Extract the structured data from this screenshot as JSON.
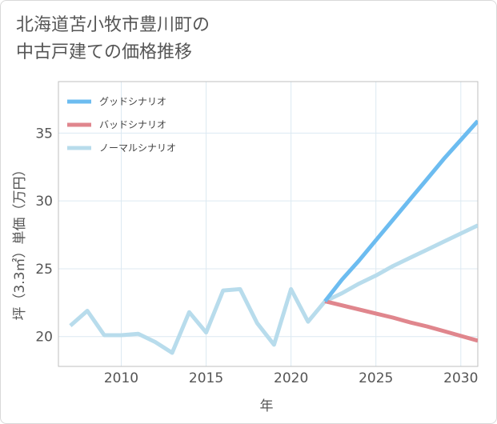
{
  "title": {
    "line1": "北海道苫小牧市豊川町の",
    "line2": "中古戸建ての価格推移"
  },
  "chart_data": {
    "type": "line",
    "title": "北海道苫小牧市豊川町の中古戸建ての価格推移",
    "xlabel": "年",
    "ylabel": "坪（3.3㎡）単価（万円）",
    "xlim": [
      2006.3,
      2031
    ],
    "ylim": [
      17.8,
      38.8
    ],
    "xticks": [
      2010,
      2015,
      2020,
      2025,
      2030
    ],
    "yticks": [
      20,
      25,
      30,
      35
    ],
    "grid": true,
    "legend_position": "top-left",
    "series": [
      {
        "name": "グッドシナリオ",
        "color": "#6cbcf0",
        "x": [
          2022,
          2023,
          2024,
          2025,
          2026,
          2027,
          2028,
          2029,
          2030,
          2031
        ],
        "y": [
          22.6,
          24.2,
          25.6,
          27.1,
          28.6,
          30.1,
          31.6,
          33.1,
          34.5,
          35.9
        ]
      },
      {
        "name": "バッドシナリオ",
        "color": "#e0868d",
        "x": [
          2022,
          2023,
          2024,
          2025,
          2026,
          2027,
          2028,
          2029,
          2030,
          2031
        ],
        "y": [
          22.6,
          22.3,
          22.0,
          21.7,
          21.4,
          21.05,
          20.75,
          20.4,
          20.05,
          19.7
        ]
      },
      {
        "name": "ノーマルシナリオ",
        "color": "#b8dcec",
        "x": [
          2007,
          2008,
          2009,
          2010,
          2011,
          2012,
          2013,
          2014,
          2015,
          2016,
          2017,
          2018,
          2019,
          2020,
          2021,
          2022,
          2023,
          2024,
          2025,
          2026,
          2027,
          2028,
          2029,
          2030,
          2031
        ],
        "y": [
          20.8,
          21.9,
          20.1,
          20.1,
          20.2,
          19.6,
          18.8,
          21.8,
          20.3,
          23.4,
          23.5,
          21.0,
          19.4,
          23.5,
          21.1,
          22.6,
          23.2,
          23.9,
          24.5,
          25.2,
          25.8,
          26.4,
          27.0,
          27.6,
          28.2
        ]
      }
    ]
  }
}
